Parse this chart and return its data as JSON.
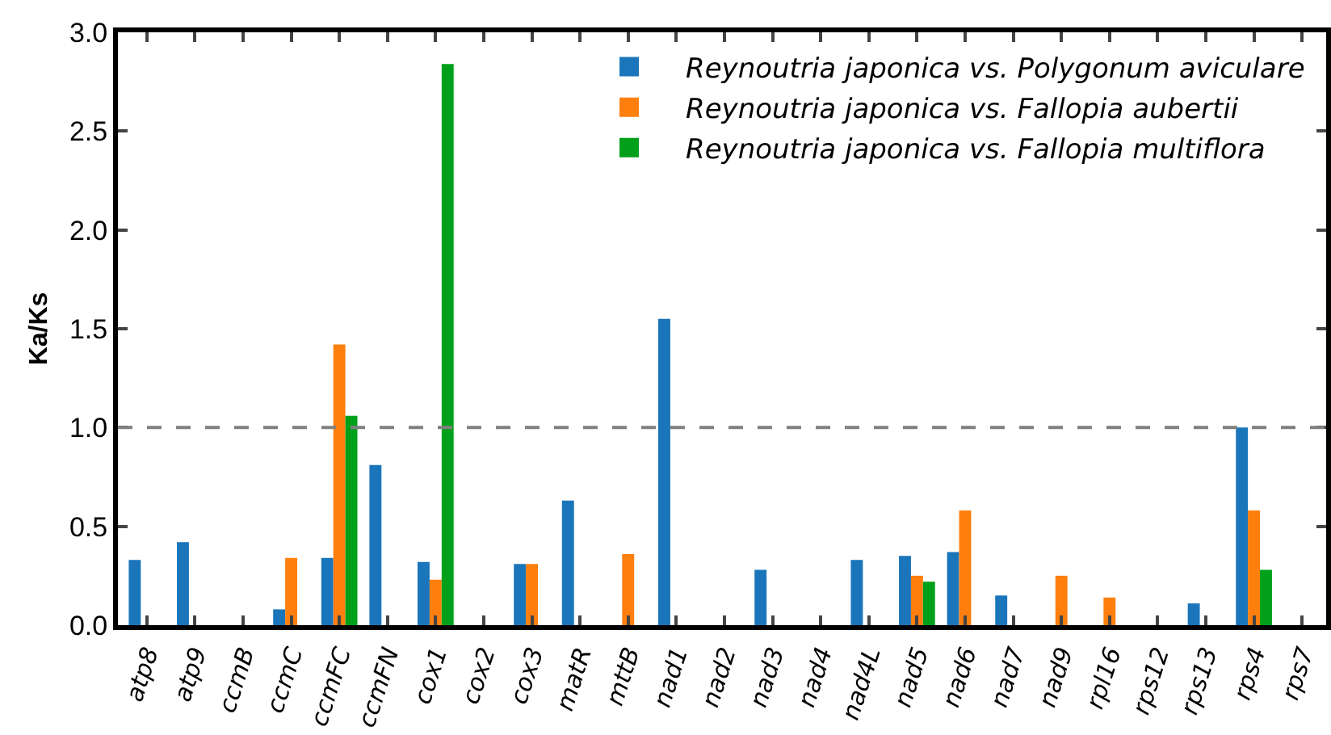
{
  "chart_data": {
    "type": "bar",
    "ylabel": "Ka/Ks",
    "categories": [
      "atp8",
      "atp9",
      "ccmB",
      "ccmC",
      "ccmFC",
      "ccmFN",
      "cox1",
      "cox2",
      "cox3",
      "matR",
      "mttB",
      "nad1",
      "nad2",
      "nad3",
      "nad4",
      "nad4L",
      "nad5",
      "nad6",
      "nad7",
      "nad9",
      "rpl16",
      "rps12",
      "rps13",
      "rps4",
      "rps7"
    ],
    "series": [
      {
        "name": "Reynoutria japonica vs. Polygonum aviculare",
        "color": "#1a75bb",
        "values": [
          0.33,
          0.42,
          null,
          0.08,
          0.34,
          0.81,
          0.32,
          null,
          0.31,
          0.63,
          null,
          1.55,
          null,
          0.28,
          null,
          0.33,
          0.35,
          0.37,
          0.15,
          null,
          null,
          null,
          0.11,
          1.0,
          null
        ]
      },
      {
        "name": "Reynoutria japonica vs. Fallopia aubertii",
        "color": "#ff7f0e",
        "values": [
          null,
          null,
          null,
          0.34,
          1.42,
          null,
          0.23,
          null,
          0.31,
          null,
          0.36,
          null,
          null,
          null,
          null,
          null,
          0.25,
          0.58,
          null,
          0.25,
          0.14,
          null,
          null,
          0.58,
          null
        ]
      },
      {
        "name": "Reynoutria japonica vs. Fallopia multiflora",
        "color": "#00a01a",
        "values": [
          null,
          null,
          null,
          null,
          1.06,
          null,
          2.84,
          null,
          null,
          null,
          null,
          null,
          null,
          null,
          null,
          null,
          0.22,
          null,
          null,
          null,
          null,
          null,
          null,
          0.28,
          null
        ]
      }
    ],
    "ylim": [
      0,
      3.0
    ],
    "yticks": [
      {
        "value": 0,
        "label": "0.0"
      },
      0.5,
      {
        "value": 1,
        "label": "1.0"
      },
      1.5,
      {
        "value": 2,
        "label": "2.0"
      },
      2.5,
      {
        "value": 3,
        "label": "3.0"
      }
    ],
    "ref_lines": [
      {
        "axis": "y",
        "value": 1,
        "color": "#808080",
        "line_style": "dashed"
      }
    ],
    "grid": false,
    "legend": "top right"
  }
}
